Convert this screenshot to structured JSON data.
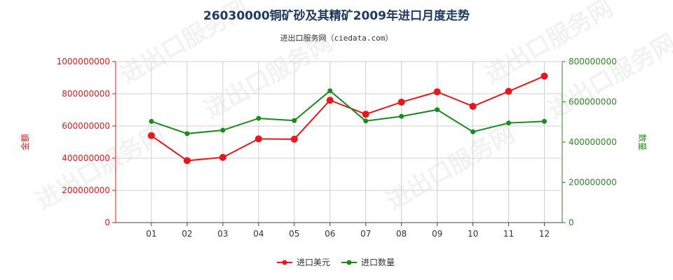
{
  "chart_data": {
    "type": "line",
    "title": "26030000铜矿砂及其精矿2009年进口月度走势",
    "subtitle": "进出口服务网（ciedata.com）",
    "categories": [
      "01",
      "02",
      "03",
      "04",
      "05",
      "06",
      "07",
      "08",
      "09",
      "10",
      "11",
      "12"
    ],
    "y_left": {
      "label": "金额",
      "range": [
        0,
        1000000000
      ],
      "ticks": [
        "0",
        "200000000",
        "400000000",
        "600000000",
        "800000000",
        "1000000000"
      ],
      "tick_values": [
        0,
        200000000,
        400000000,
        600000000,
        800000000,
        1000000000
      ],
      "color": "#e8171c"
    },
    "y_right": {
      "label": "数量",
      "range": [
        0,
        800000000
      ],
      "ticks": [
        "0",
        "200000000",
        "400000000",
        "600000000",
        "800000000"
      ],
      "tick_values": [
        0,
        200000000,
        400000000,
        600000000,
        800000000
      ],
      "color": "#2a8a22"
    },
    "series": [
      {
        "name": "进口美元",
        "axis": "left",
        "color": "#e8171c",
        "values": [
          540000000,
          385000000,
          405000000,
          520000000,
          518000000,
          760000000,
          673000000,
          748000000,
          812000000,
          722000000,
          815000000,
          910000000
        ]
      },
      {
        "name": "进口数量",
        "axis": "right",
        "color": "#1a8a1a",
        "values": [
          503000000,
          442000000,
          459000000,
          518000000,
          507000000,
          655000000,
          505000000,
          528000000,
          561000000,
          451000000,
          495000000,
          503000000
        ]
      }
    ],
    "grid": true,
    "legend": "bottom-center",
    "watermark": "进出口服务网"
  }
}
